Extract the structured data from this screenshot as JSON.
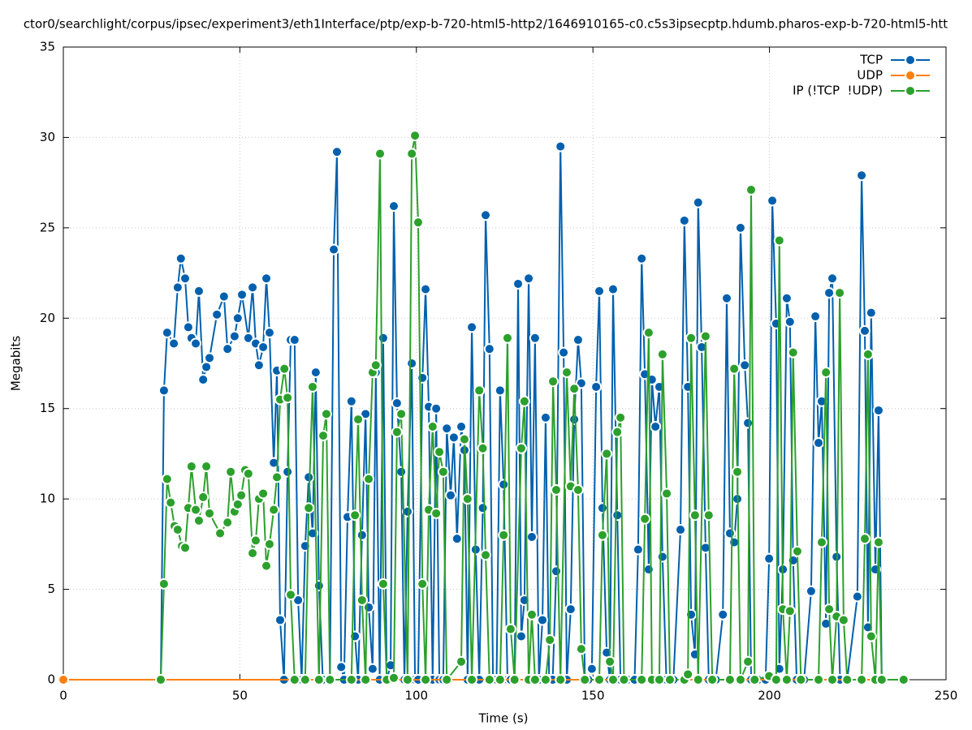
{
  "chart_data": {
    "type": "line",
    "title": "ctor0/searchlight/corpus/ipsec/experiment3/eth1Interface/ptp/exp-b-720-html5-http2/1646910165-c0.c5s3ipsecptp.hdumb.pharos-exp-b-720-html5-htt",
    "x_label": "Time (s)",
    "y_label": "Megabits",
    "xlim": [
      0,
      250
    ],
    "xticks": [
      0,
      50,
      100,
      150,
      200,
      250
    ],
    "ylim": [
      0,
      35
    ],
    "yticks": [
      0,
      5,
      10,
      15,
      20,
      25,
      30,
      35
    ],
    "grid": true,
    "legend": "top-right",
    "series": [
      {
        "name": "TCP",
        "color": "#0060ad",
        "x": [
          27.6,
          28.5,
          29.4,
          31.3,
          32.4,
          33.3,
          34.5,
          35.4,
          36.3,
          37.5,
          38.4,
          39.6,
          40.5,
          41.4,
          43.5,
          45.5,
          46.5,
          48.5,
          49.4,
          50.6,
          52.4,
          53.6,
          54.5,
          55.4,
          56.6,
          57.5,
          58.4,
          59.6,
          60.5,
          61.4,
          62.5,
          63.5,
          64.4,
          65.5,
          66.5,
          67.5,
          68.5,
          69.5,
          70.6,
          71.5,
          72.4,
          73.5,
          75.5,
          76.6,
          77.5,
          78.7,
          79.5,
          80.5,
          81.6,
          82.6,
          83.5,
          84.6,
          85.6,
          86.5,
          87.6,
          88.5,
          89.6,
          90.6,
          91.6,
          92.7,
          93.6,
          94.5,
          95.7,
          96.6,
          97.5,
          98.7,
          99.6,
          100.5,
          101.7,
          102.6,
          103.5,
          104.6,
          105.6,
          106.5,
          107.6,
          108.6,
          109.7,
          110.6,
          111.5,
          112.7,
          113.6,
          114.5,
          115.7,
          116.8,
          117.8,
          118.8,
          119.6,
          120.7,
          121.7,
          122.7,
          123.7,
          124.7,
          125.8,
          126.7,
          127.8,
          128.8,
          129.7,
          130.6,
          131.8,
          132.7,
          133.6,
          134.7,
          135.7,
          136.6,
          137.6,
          138.6,
          139.6,
          140.8,
          141.7,
          142.6,
          143.7,
          144.7,
          145.8,
          146.7,
          147.7,
          148.7,
          149.7,
          150.9,
          151.8,
          152.7,
          153.9,
          154.8,
          155.7,
          156.9,
          157.8,
          159.8,
          161.8,
          162.8,
          163.8,
          164.7,
          165.8,
          166.7,
          167.7,
          168.8,
          169.7,
          170.8,
          172.8,
          174.8,
          175.9,
          176.9,
          177.8,
          178.9,
          179.8,
          180.8,
          181.9,
          182.8,
          184.8,
          186.8,
          187.9,
          188.8,
          190.0,
          190.9,
          191.8,
          193.0,
          193.9,
          194.8,
          196.8,
          198.9,
          199.9,
          200.8,
          201.9,
          202.8,
          203.8,
          204.9,
          205.8,
          206.7,
          207.7,
          209.8,
          211.8,
          213.0,
          213.9,
          214.8,
          216.0,
          216.9,
          217.8,
          219.0,
          220.0,
          222.0,
          224.9,
          226.1,
          227.0,
          227.9,
          228.8,
          230.0,
          230.9,
          231.8,
          238.0
        ],
        "values": [
          0,
          16.0,
          19.2,
          18.6,
          21.7,
          23.3,
          22.2,
          19.5,
          18.9,
          18.6,
          21.5,
          16.6,
          17.3,
          17.8,
          20.2,
          21.2,
          18.3,
          19.0,
          20.0,
          21.3,
          18.9,
          21.7,
          18.6,
          17.4,
          18.4,
          22.2,
          19.2,
          12.0,
          17.1,
          3.3,
          0,
          11.5,
          18.8,
          18.8,
          4.4,
          0,
          7.4,
          11.2,
          8.1,
          17.0,
          5.2,
          0,
          0,
          23.8,
          29.2,
          0.7,
          0,
          9.0,
          15.4,
          2.4,
          0,
          8.0,
          14.7,
          4.0,
          0.6,
          17.0,
          0,
          18.9,
          0,
          0.8,
          26.2,
          15.3,
          11.5,
          0,
          9.3,
          17.5,
          0,
          0,
          16.7,
          21.6,
          15.1,
          0,
          15.0,
          0,
          0,
          13.9,
          10.2,
          13.4,
          7.8,
          14.0,
          12.7,
          0,
          19.5,
          7.2,
          0,
          9.5,
          25.7,
          18.3,
          0,
          0,
          16.0,
          10.8,
          0,
          0,
          0,
          21.9,
          2.4,
          4.4,
          22.2,
          7.9,
          18.9,
          0,
          3.3,
          14.5,
          0,
          0,
          6.0,
          29.5,
          18.1,
          0,
          3.9,
          14.4,
          18.8,
          16.4,
          0,
          0,
          0.6,
          16.2,
          21.5,
          9.5,
          1.5,
          0,
          21.6,
          9.1,
          0,
          0,
          0,
          7.2,
          23.3,
          16.9,
          6.1,
          16.6,
          14.0,
          16.2,
          6.8,
          0,
          0,
          8.3,
          25.4,
          16.2,
          3.6,
          1.4,
          26.4,
          18.4,
          7.3,
          0,
          0,
          3.6,
          21.1,
          8.1,
          7.6,
          10.0,
          25.0,
          17.4,
          14.2,
          0,
          0,
          0,
          6.7,
          26.5,
          19.7,
          0.6,
          6.1,
          21.1,
          19.8,
          6.6,
          0,
          0,
          4.9,
          20.1,
          13.1,
          15.4,
          3.1,
          21.4,
          22.2,
          6.8,
          0,
          0,
          4.6,
          27.9,
          19.3,
          2.9,
          20.3,
          6.1,
          14.9,
          0,
          0
        ]
      },
      {
        "name": "UDP",
        "color": "#ff7f0e",
        "x": [
          0,
          238.0
        ],
        "values": [
          0,
          0
        ]
      },
      {
        "name": "IP (!TCP  !UDP)",
        "color": "#2ca02c",
        "x": [
          27.6,
          28.5,
          29.4,
          30.4,
          31.5,
          32.4,
          33.6,
          34.5,
          35.4,
          36.3,
          37.5,
          38.4,
          39.6,
          40.5,
          41.4,
          44.4,
          46.5,
          47.4,
          48.5,
          49.4,
          50.4,
          51.5,
          52.4,
          53.6,
          54.5,
          55.4,
          56.6,
          57.5,
          58.4,
          59.6,
          60.5,
          61.4,
          62.6,
          63.5,
          64.4,
          65.5,
          68.5,
          69.5,
          70.6,
          72.4,
          73.6,
          74.5,
          75.5,
          81.6,
          82.6,
          83.5,
          84.6,
          85.6,
          86.5,
          87.6,
          88.5,
          89.7,
          90.6,
          91.6,
          93.6,
          94.5,
          95.7,
          97.5,
          98.7,
          99.6,
          100.5,
          101.7,
          102.6,
          103.5,
          104.6,
          105.6,
          106.5,
          107.6,
          108.6,
          112.7,
          113.6,
          114.5,
          115.7,
          117.8,
          118.8,
          119.6,
          120.7,
          123.7,
          124.7,
          125.8,
          126.7,
          127.8,
          129.7,
          130.6,
          131.8,
          132.7,
          133.6,
          136.6,
          137.8,
          138.7,
          139.6,
          140.8,
          142.6,
          143.7,
          144.7,
          145.8,
          146.7,
          147.7,
          151.8,
          152.7,
          153.9,
          154.8,
          155.7,
          156.9,
          157.8,
          158.8,
          163.8,
          164.7,
          165.8,
          166.7,
          168.8,
          169.7,
          170.9,
          171.8,
          175.9,
          176.9,
          177.8,
          178.9,
          179.8,
          181.9,
          182.8,
          183.8,
          188.8,
          190.0,
          190.9,
          191.8,
          193.9,
          194.8,
          195.8,
          199.9,
          201.9,
          202.8,
          203.8,
          204.9,
          205.8,
          206.7,
          207.9,
          208.9,
          213.9,
          214.8,
          216.0,
          216.9,
          217.8,
          219.0,
          219.9,
          221.0,
          222.0,
          226.1,
          227.0,
          227.9,
          228.8,
          230.0,
          230.9,
          231.8,
          238.0
        ],
        "values": [
          0,
          5.3,
          11.1,
          9.8,
          8.5,
          8.3,
          7.4,
          7.3,
          9.5,
          11.8,
          9.4,
          8.8,
          10.1,
          11.8,
          9.2,
          8.1,
          8.7,
          11.5,
          9.3,
          9.7,
          10.2,
          11.6,
          11.4,
          7.0,
          7.7,
          10.0,
          10.3,
          6.3,
          7.5,
          9.4,
          11.2,
          15.5,
          17.2,
          15.6,
          4.7,
          0,
          0,
          9.5,
          16.2,
          0,
          13.5,
          14.7,
          0,
          0,
          9.1,
          14.4,
          4.4,
          0,
          11.1,
          17.0,
          17.4,
          29.1,
          5.3,
          0,
          0.1,
          13.7,
          14.7,
          0,
          29.1,
          30.1,
          25.3,
          5.3,
          0,
          9.4,
          14.0,
          9.2,
          12.6,
          11.5,
          0,
          1.0,
          13.3,
          10.0,
          0,
          16.0,
          12.8,
          6.9,
          0,
          0,
          8.0,
          18.9,
          2.8,
          0,
          12.8,
          15.4,
          0,
          3.6,
          0,
          0,
          2.2,
          16.5,
          10.5,
          0,
          17.0,
          10.7,
          16.1,
          10.5,
          1.7,
          0,
          0,
          8.0,
          12.5,
          1.0,
          0,
          13.7,
          14.5,
          0,
          0,
          8.9,
          19.2,
          0,
          0,
          18.0,
          10.3,
          0,
          0,
          0.3,
          18.9,
          9.1,
          0,
          19.0,
          9.1,
          0,
          0,
          17.2,
          11.5,
          0,
          1.0,
          27.1,
          0,
          0.2,
          0,
          24.3,
          3.9,
          0,
          3.8,
          18.1,
          7.1,
          0,
          0,
          7.6,
          17.0,
          3.9,
          0,
          3.5,
          21.4,
          3.3,
          0,
          0,
          7.8,
          18.0,
          2.4,
          0,
          7.6,
          0,
          0
        ]
      }
    ]
  }
}
